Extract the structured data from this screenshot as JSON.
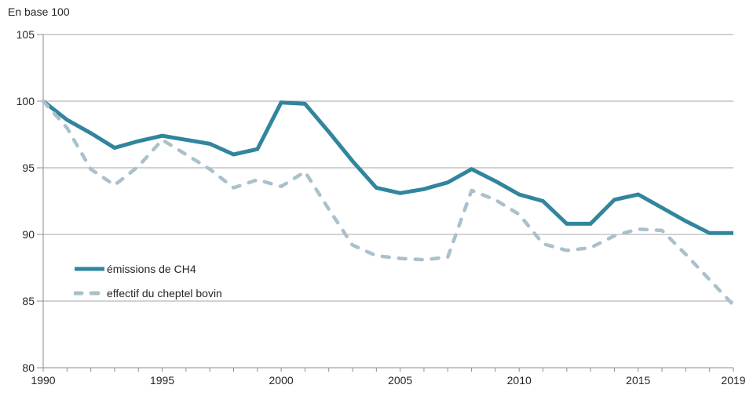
{
  "chart_data": {
    "type": "line",
    "title": "En base 100",
    "x": [
      1990,
      1991,
      1992,
      1993,
      1994,
      1995,
      1996,
      1997,
      1998,
      1999,
      2000,
      2001,
      2002,
      2003,
      2004,
      2005,
      2006,
      2007,
      2008,
      2009,
      2010,
      2011,
      2012,
      2013,
      2014,
      2015,
      2016,
      2017,
      2018,
      2019
    ],
    "series": [
      {
        "name": "émissions de CH4",
        "style": "solid",
        "color": "#31859C",
        "values": [
          100,
          98.6,
          97.6,
          96.5,
          97.0,
          97.4,
          97.1,
          96.8,
          96.0,
          96.4,
          99.9,
          99.8,
          97.7,
          95.5,
          93.5,
          93.1,
          93.4,
          93.9,
          94.9,
          94.0,
          93.0,
          92.5,
          90.8,
          90.8,
          92.6,
          93.0,
          92.0,
          91.0,
          90.1,
          90.1
        ]
      },
      {
        "name": "effectif du cheptel bovin",
        "style": "dashed",
        "color": "#AAC1CB",
        "values": [
          100,
          98.0,
          94.9,
          93.7,
          95.1,
          97.1,
          96.0,
          94.9,
          93.5,
          94.1,
          93.6,
          94.7,
          91.9,
          89.2,
          88.4,
          88.2,
          88.1,
          88.3,
          93.3,
          92.6,
          91.5,
          89.3,
          88.8,
          89.0,
          89.9,
          90.4,
          90.3,
          88.5,
          86.6,
          84.7
        ]
      }
    ],
    "ylim": [
      80,
      105
    ],
    "yticks": [
      80,
      85,
      90,
      95,
      100,
      105
    ],
    "xticks_labeled": [
      1990,
      1995,
      2000,
      2005,
      2010,
      2015,
      2019
    ],
    "grid": true,
    "legend_position": "inside-bottom-left"
  },
  "colors": {
    "grid": "#A6A6A6",
    "axis": "#8C8C8C",
    "tick_text": "#262626"
  }
}
